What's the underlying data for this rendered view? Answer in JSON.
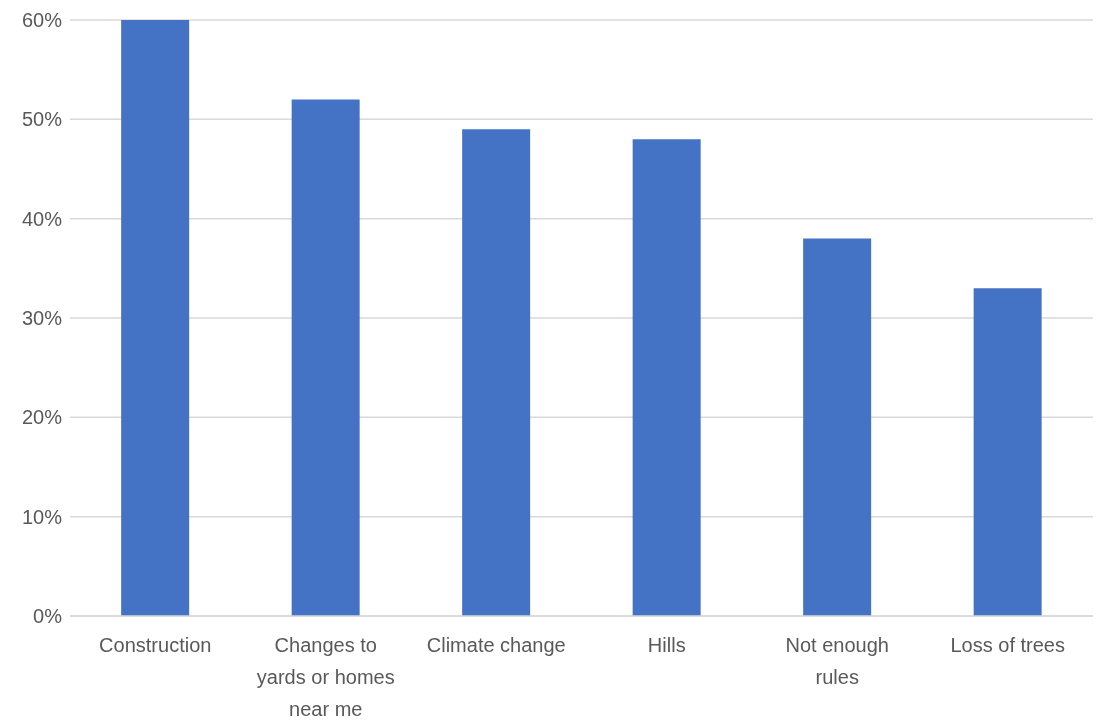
{
  "chart_data": {
    "type": "bar",
    "categories": [
      "Construction",
      "Changes to yards or homes near me",
      "Climate change",
      "Hills",
      "Not enough rules",
      "Loss of trees"
    ],
    "values": [
      60,
      52,
      49,
      48,
      38,
      33
    ],
    "color": "#4472c4",
    "ylim": [
      0,
      60
    ],
    "yticks": [
      {
        "value": 0,
        "label": "0%"
      },
      {
        "value": 10,
        "label": "10%"
      },
      {
        "value": 20,
        "label": "20%"
      },
      {
        "value": 30,
        "label": "30%"
      },
      {
        "value": 40,
        "label": "40%"
      },
      {
        "value": 50,
        "label": "50%"
      },
      {
        "value": 60,
        "label": "60%"
      }
    ],
    "grid": "y"
  }
}
